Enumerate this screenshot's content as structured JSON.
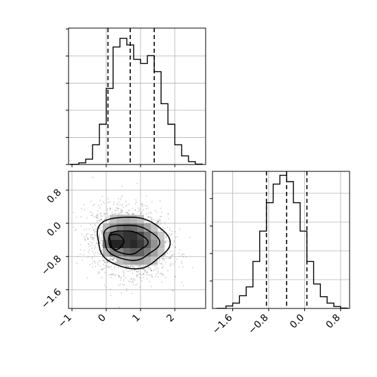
{
  "chart_data": [
    {
      "panel": "top-left",
      "type": "histogram",
      "variable": 0,
      "xlim": [
        -1.1,
        2.9
      ],
      "ylim": [
        0,
        1660
      ],
      "grid": true,
      "bin_edges": [
        -1.05,
        -0.8,
        -0.6,
        -0.4,
        -0.2,
        0.0,
        0.2,
        0.4,
        0.6,
        0.8,
        1.0,
        1.2,
        1.4,
        1.6,
        1.8,
        2.0,
        2.2,
        2.4,
        2.6,
        2.8
      ],
      "counts": [
        3,
        20,
        65,
        240,
        490,
        925,
        1430,
        1535,
        1455,
        1280,
        1230,
        1325,
        1130,
        740,
        490,
        240,
        105,
        35,
        5
      ],
      "quantiles": [
        0.05,
        0.7,
        1.4
      ]
    },
    {
      "panel": "bottom-left",
      "type": "scatter-density-contour",
      "xlim": [
        -1.1,
        2.9
      ],
      "ylim": [
        -2.05,
        1.25
      ],
      "grid": true,
      "x_ticks": [
        "−1",
        "0",
        "1",
        "2"
      ],
      "y_ticks": [
        "0.8",
        "0.0",
        "−0.8",
        "−1.6"
      ],
      "x_tick_values": [
        -1,
        0,
        1,
        2
      ],
      "y_tick_values": [
        0.8,
        0.0,
        -0.8,
        -1.6
      ],
      "n_points": 2500,
      "density_center": [
        0.3,
        -0.45
      ],
      "contour_levels": 3
    },
    {
      "panel": "bottom-right",
      "type": "histogram",
      "variable": 1,
      "xlim": [
        -2.05,
        1.0
      ],
      "ylim": [
        0,
        1400
      ],
      "grid": true,
      "x_ticks": [
        "−1.6",
        "−0.8",
        "0.0",
        "0.8"
      ],
      "x_tick_values": [
        -1.6,
        -0.8,
        0.0,
        0.8
      ],
      "bin_edges": [
        -1.95,
        -1.75,
        -1.6,
        -1.45,
        -1.3,
        -1.15,
        -1.0,
        -0.85,
        -0.7,
        -0.55,
        -0.4,
        -0.25,
        -0.1,
        0.05,
        0.2,
        0.35,
        0.5,
        0.65,
        0.8,
        0.95
      ],
      "counts": [
        1,
        25,
        55,
        130,
        220,
        480,
        790,
        1080,
        1270,
        1360,
        1295,
        1080,
        790,
        480,
        250,
        120,
        55,
        20,
        4
      ],
      "quantiles": [
        -0.85,
        -0.4,
        0.05
      ]
    }
  ]
}
